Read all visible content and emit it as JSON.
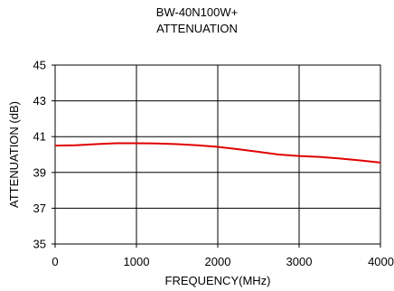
{
  "chart_data": {
    "type": "line",
    "title": "BW-40N100W+",
    "subtitle": "ATTENUATION",
    "xlabel": "FREQUENCY(MHz)",
    "ylabel": "ATTENUATION (dB)",
    "xlim": [
      0,
      4000
    ],
    "ylim": [
      35,
      45
    ],
    "xticks": [
      0,
      1000,
      2000,
      3000,
      4000
    ],
    "xtick_labels": [
      "0",
      "1000",
      "2000",
      "3000",
      "4000"
    ],
    "yticks": [
      35,
      37,
      39,
      41,
      43,
      45
    ],
    "ytick_labels": [
      "35",
      "37",
      "39",
      "41",
      "43",
      "45"
    ],
    "grid": true,
    "series": [
      {
        "color": "#e00000",
        "x": [
          0,
          250,
          500,
          750,
          1000,
          1250,
          1500,
          1750,
          2000,
          2250,
          2500,
          2750,
          3000,
          3250,
          3500,
          3750,
          4000
        ],
        "y": [
          40.5,
          40.52,
          40.58,
          40.63,
          40.63,
          40.62,
          40.58,
          40.52,
          40.43,
          40.3,
          40.15,
          40.0,
          39.92,
          39.87,
          39.78,
          39.67,
          39.55
        ]
      }
    ]
  }
}
